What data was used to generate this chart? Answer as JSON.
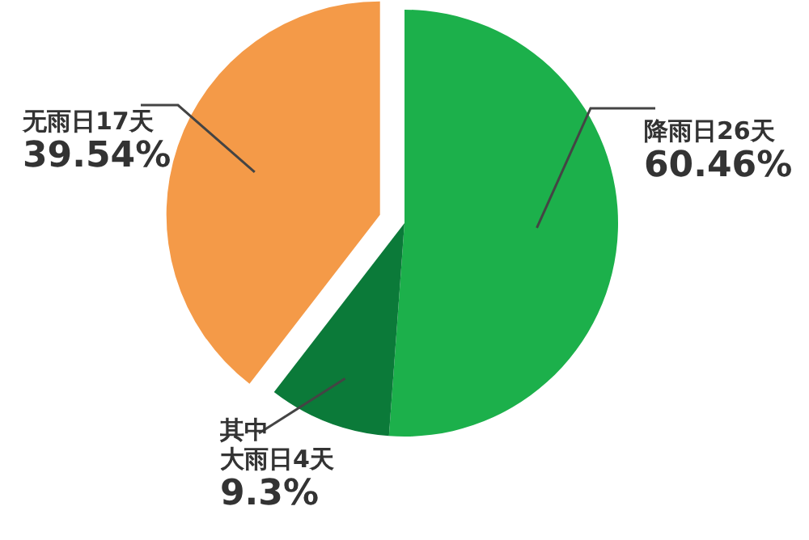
{
  "chart_data": {
    "type": "pie",
    "categories": [
      "降雨日26天",
      "其中大雨日4天",
      "无雨日17天"
    ],
    "values": [
      51.16,
      9.3,
      39.54
    ],
    "value_labels": [
      null,
      "9.3%",
      "39.54%"
    ],
    "annotations": [
      "60.46%"
    ],
    "colors": [
      "#1cb04b",
      "#0b7a39",
      "#f49a48"
    ],
    "legend": false
  }
}
